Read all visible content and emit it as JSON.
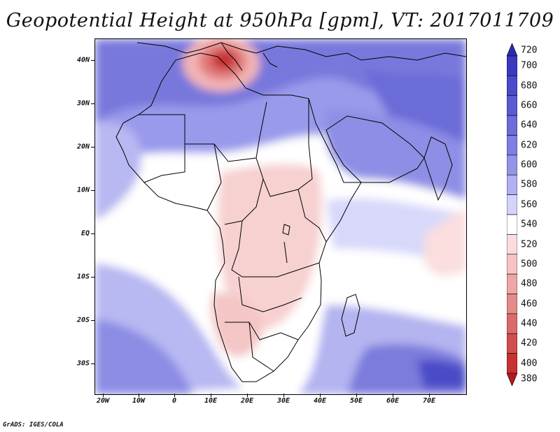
{
  "title": "Geopotential Height at 950hPa [gpm], VT: 2017011709",
  "credit": "GrADS: IGES/COLA",
  "axes": {
    "lat_ticks": [
      "40N",
      "30N",
      "20N",
      "10N",
      "EQ",
      "10S",
      "20S",
      "30S"
    ],
    "lon_ticks": [
      "20W",
      "10W",
      "0",
      "10E",
      "20E",
      "30E",
      "40E",
      "50E",
      "60E",
      "70E"
    ]
  },
  "colorbar": {
    "levels": [
      "720",
      "700",
      "680",
      "660",
      "640",
      "620",
      "600",
      "580",
      "560",
      "540",
      "520",
      "500",
      "480",
      "460",
      "440",
      "420",
      "400",
      "380"
    ],
    "colors": [
      "#2b2bb0",
      "#3a3ac0",
      "#4a4acc",
      "#5a5ad4",
      "#6c6cdc",
      "#7e7ee4",
      "#9494ea",
      "#b0b0f2",
      "#d4d4fa",
      "#ffffff",
      "#fbdcdc",
      "#f6c4c4",
      "#eea6a6",
      "#e68a8a",
      "#dc6a6a",
      "#d24e4e",
      "#c83232",
      "#b31c1c"
    ]
  },
  "map": {
    "region": "Africa, Arabia and Mediterranean",
    "contour_colors": {
      "high": "#6a6ad8",
      "mid": "#b8b8f2",
      "low": "#f6caca",
      "min": "#d23b3b"
    }
  }
}
